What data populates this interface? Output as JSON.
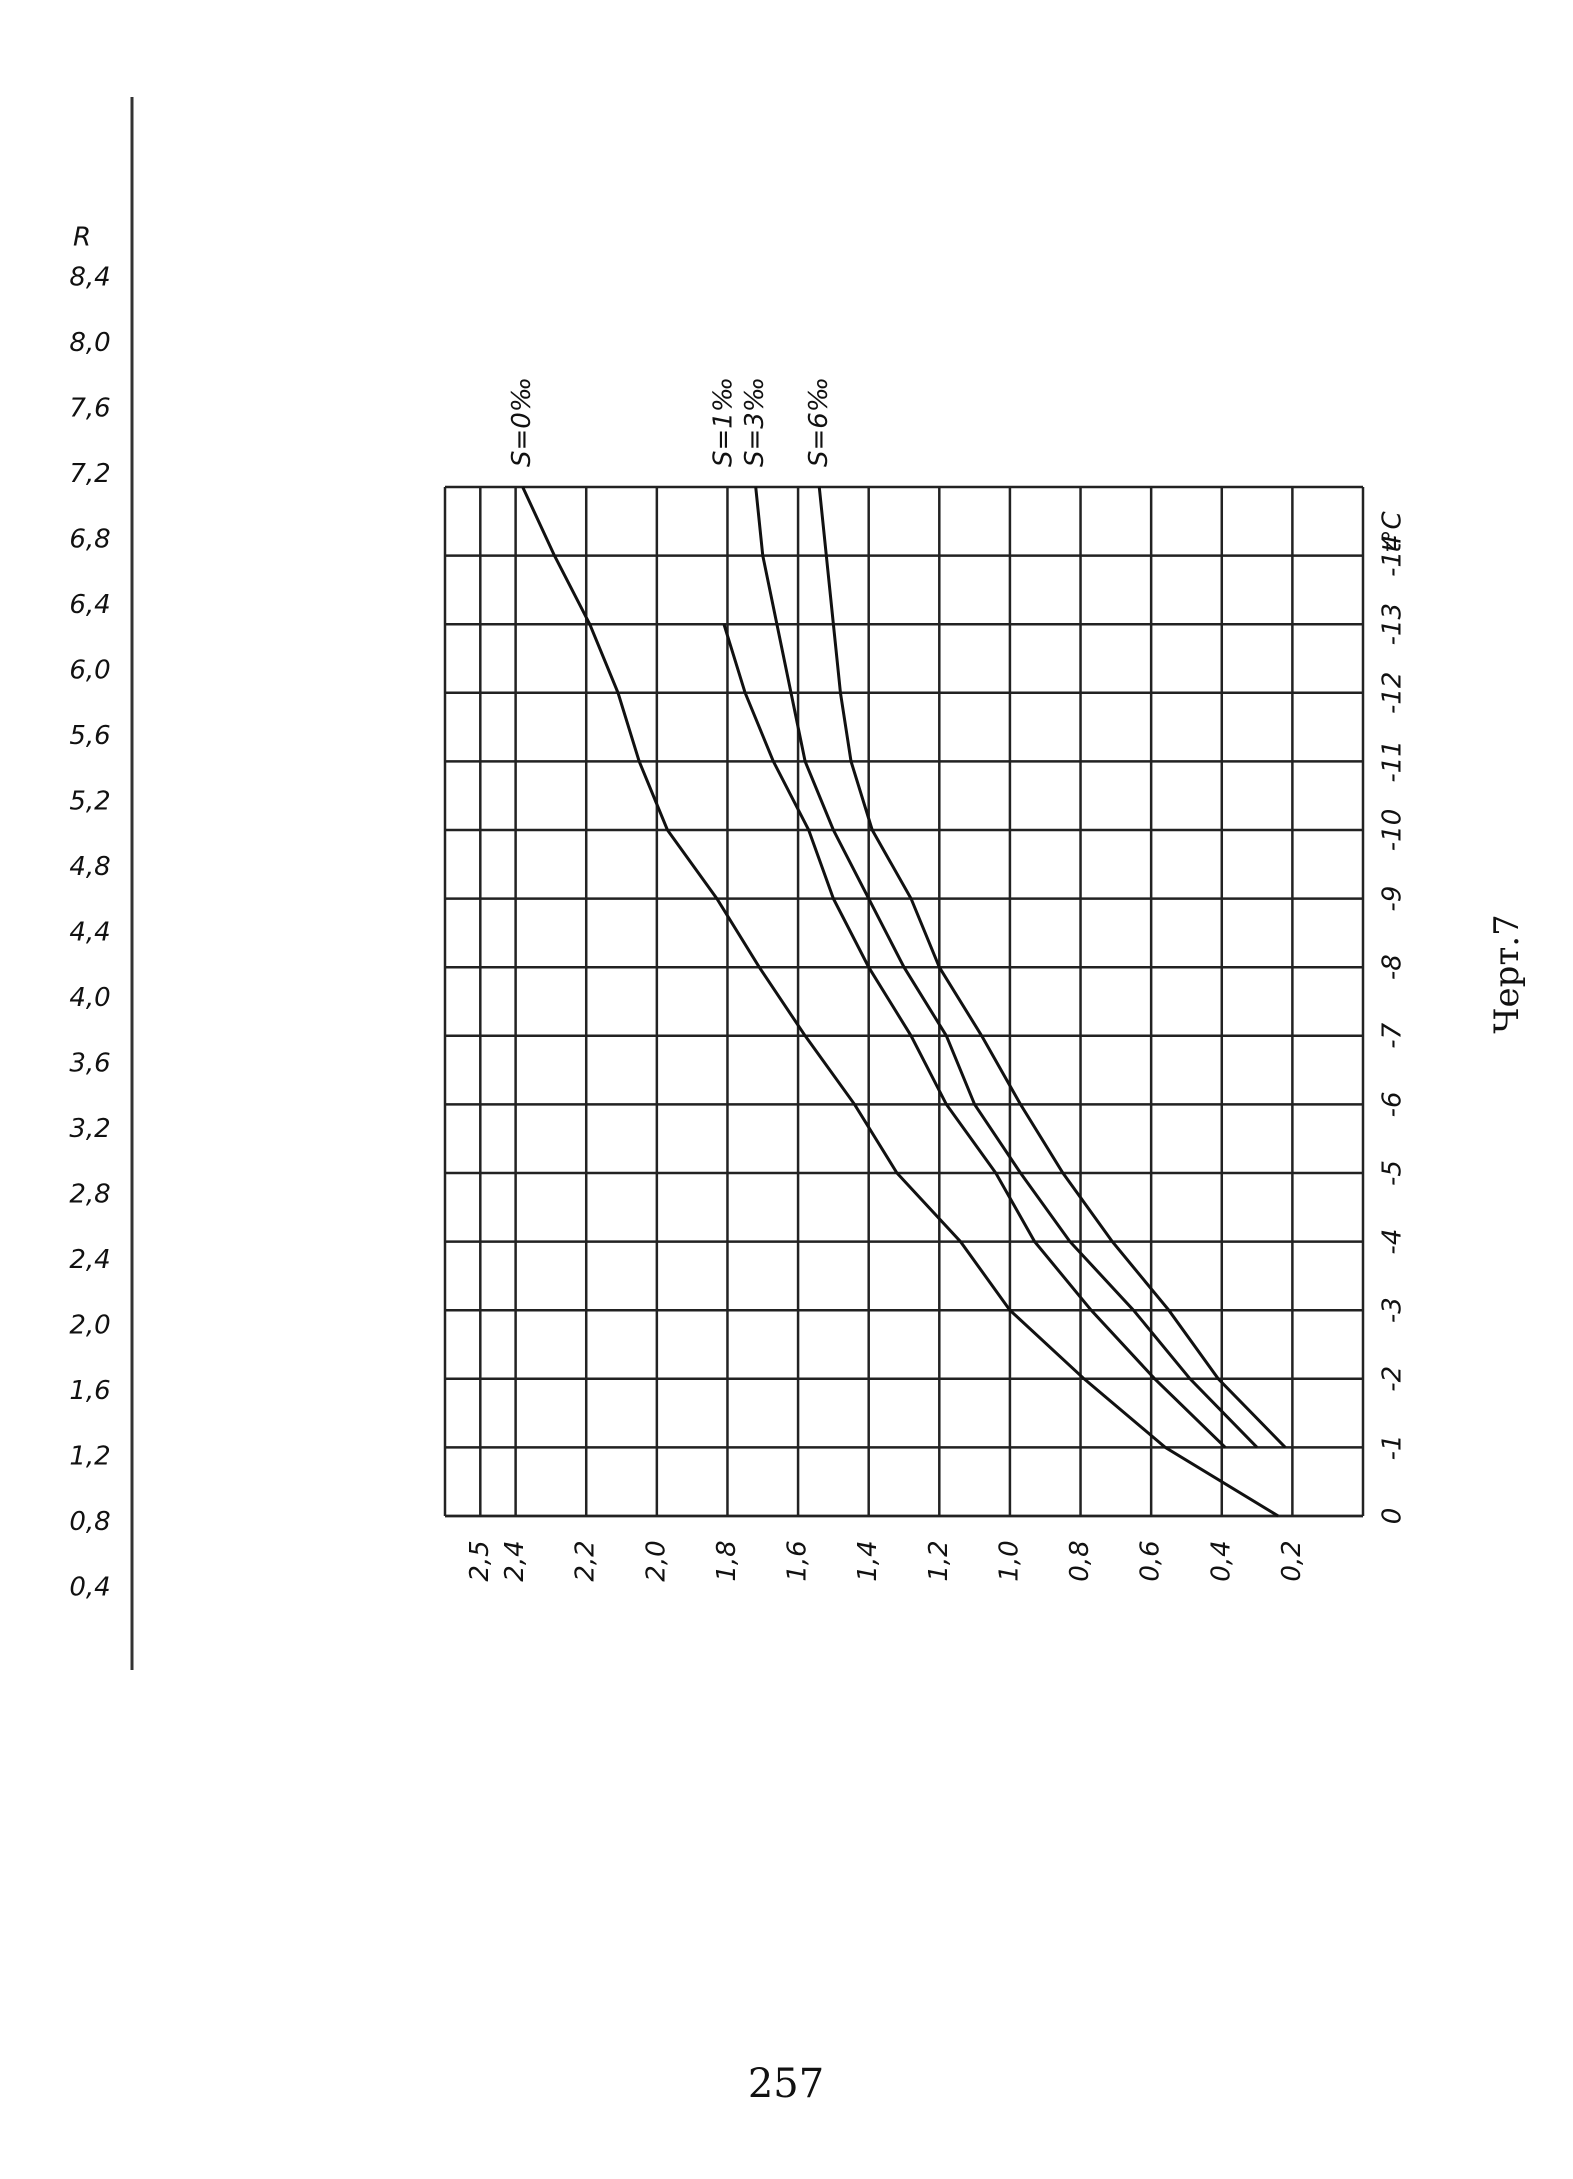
{
  "chart_data": {
    "type": "line",
    "x_label": "t°C",
    "x": [
      0,
      -1,
      -2,
      -3,
      -4,
      -5,
      -6,
      -7,
      -8,
      -9,
      -10,
      -11,
      -12,
      -13,
      -14,
      -15
    ],
    "xlim": [
      0,
      -15
    ],
    "xticks": [
      0,
      -1,
      -2,
      -3,
      -4,
      -5,
      -6,
      -7,
      -8,
      -9,
      -10,
      -11,
      -12,
      -13,
      -14
    ],
    "ylim": [
      0,
      2.6
    ],
    "yticks": [
      {
        "value": 2.5,
        "label": "2,5"
      },
      {
        "value": 2.4,
        "label": "2,4"
      },
      {
        "value": 2.2,
        "label": "2,2"
      },
      {
        "value": 2.0,
        "label": "2,0"
      },
      {
        "value": 1.8,
        "label": "1,8"
      },
      {
        "value": 1.6,
        "label": "1,6"
      },
      {
        "value": 1.4,
        "label": "1,4"
      },
      {
        "value": 1.2,
        "label": "1,2"
      },
      {
        "value": 1.0,
        "label": "1,0"
      },
      {
        "value": 0.8,
        "label": "0,8"
      },
      {
        "value": 0.6,
        "label": "0,6"
      },
      {
        "value": 0.4,
        "label": "0,4"
      },
      {
        "value": 0.2,
        "label": "0,2"
      }
    ],
    "grid": true,
    "series": [
      {
        "name": "S=0‰",
        "color": "#111111",
        "values": [
          0.24,
          0.56,
          0.79,
          1.0,
          1.14,
          1.32,
          1.44,
          1.58,
          1.71,
          1.83,
          1.97,
          2.05,
          2.11,
          2.19,
          2.29,
          2.38
        ]
      },
      {
        "name": "S=1‰",
        "color": "#111111",
        "values": [
          null,
          0.39,
          0.59,
          0.77,
          0.93,
          1.04,
          1.18,
          1.28,
          1.4,
          1.5,
          1.57,
          1.67,
          1.75,
          1.81,
          null,
          null
        ]
      },
      {
        "name": "S=3‰",
        "color": "#111111",
        "values": [
          null,
          0.3,
          0.49,
          0.65,
          0.83,
          0.97,
          1.1,
          1.18,
          1.3,
          1.4,
          1.5,
          1.58,
          1.62,
          1.66,
          1.7,
          1.72
        ]
      },
      {
        "name": "S=6‰",
        "color": "#111111",
        "values": [
          null,
          0.22,
          0.41,
          0.55,
          0.71,
          0.85,
          0.97,
          1.08,
          1.2,
          1.28,
          1.39,
          1.45,
          1.48,
          1.5,
          1.52,
          1.54
        ]
      }
    ]
  },
  "left_scale": {
    "title": "R",
    "labels": [
      "8,4",
      "8,0",
      "7,6",
      "7,2",
      "6,8",
      "6,4",
      "6,0",
      "5,6",
      "5,2",
      "4,8",
      "4,4",
      "4,0",
      "3,6",
      "3,2",
      "2,8",
      "2,4",
      "2,0",
      "1,6",
      "1,2",
      "0,8",
      "0,4"
    ]
  },
  "caption": "Черт.7",
  "page_number": "257"
}
